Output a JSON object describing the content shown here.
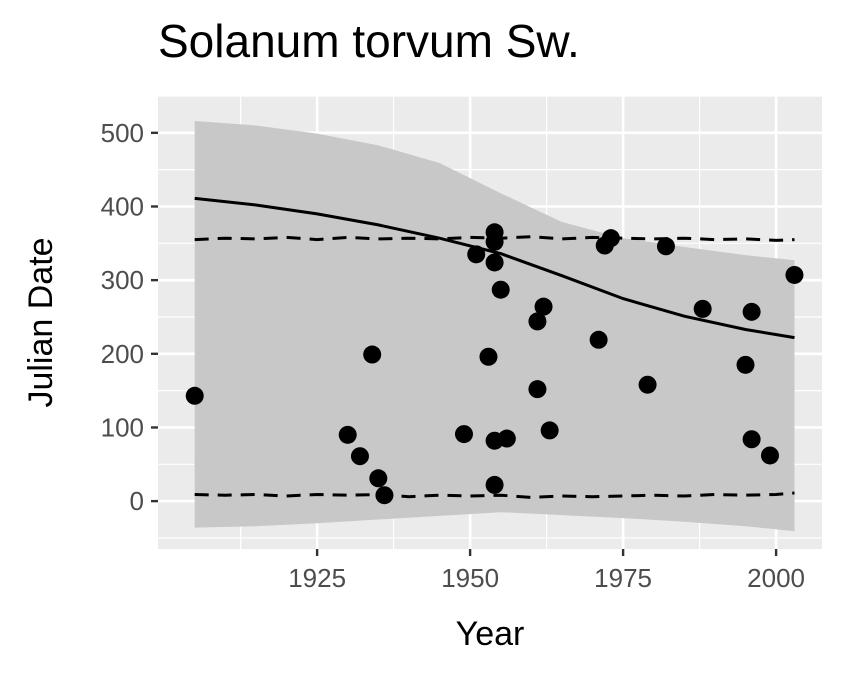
{
  "chart_data": {
    "type": "scatter",
    "title": "Solanum torvum Sw.",
    "xlabel": "Year",
    "ylabel": "Julian Date",
    "xlim": [
      1899,
      2007.5
    ],
    "ylim": [
      -65,
      550
    ],
    "x_ticks": [
      1925,
      1950,
      1975,
      2000
    ],
    "x_tick_labels": [
      "1925",
      "1950",
      "1975",
      "2000"
    ],
    "y_ticks": [
      0,
      100,
      200,
      300,
      400,
      500
    ],
    "y_tick_labels": [
      "0",
      "100",
      "200",
      "300",
      "400",
      "500"
    ],
    "grid": true,
    "legend": "none",
    "colors": {
      "panel": "#ebebeb",
      "grid": "#ffffff",
      "ribbon": "#c8c8c8",
      "points": "#000000",
      "lines": "#000000"
    },
    "points": [
      {
        "x": 1905,
        "y": 143
      },
      {
        "x": 1930,
        "y": 90
      },
      {
        "x": 1932,
        "y": 61
      },
      {
        "x": 1934,
        "y": 199
      },
      {
        "x": 1935,
        "y": 31
      },
      {
        "x": 1936,
        "y": 8
      },
      {
        "x": 1949,
        "y": 91
      },
      {
        "x": 1951,
        "y": 335
      },
      {
        "x": 1953,
        "y": 196
      },
      {
        "x": 1954,
        "y": 365
      },
      {
        "x": 1954,
        "y": 352
      },
      {
        "x": 1954,
        "y": 324
      },
      {
        "x": 1954,
        "y": 82
      },
      {
        "x": 1954,
        "y": 22
      },
      {
        "x": 1955,
        "y": 287
      },
      {
        "x": 1956,
        "y": 85
      },
      {
        "x": 1961,
        "y": 244
      },
      {
        "x": 1961,
        "y": 152
      },
      {
        "x": 1962,
        "y": 264
      },
      {
        "x": 1963,
        "y": 96
      },
      {
        "x": 1971,
        "y": 219
      },
      {
        "x": 1972,
        "y": 347
      },
      {
        "x": 1973,
        "y": 357
      },
      {
        "x": 1979,
        "y": 158
      },
      {
        "x": 1982,
        "y": 346
      },
      {
        "x": 1988,
        "y": 261
      },
      {
        "x": 1995,
        "y": 185
      },
      {
        "x": 1996,
        "y": 257
      },
      {
        "x": 1996,
        "y": 84
      },
      {
        "x": 1999,
        "y": 62
      },
      {
        "x": 2003,
        "y": 307
      }
    ],
    "fit_line": {
      "x": [
        1905,
        1915,
        1925,
        1935,
        1945,
        1955,
        1965,
        1975,
        1985,
        1995,
        2003
      ],
      "y": [
        411,
        402,
        390,
        375,
        357,
        336,
        306,
        275,
        251,
        233,
        222
      ]
    },
    "ribbon": {
      "x": [
        1905,
        1915,
        1925,
        1935,
        1945,
        1955,
        1965,
        1975,
        1985,
        1995,
        2003
      ],
      "upper": [
        516,
        510,
        499,
        483,
        459,
        418,
        379,
        357,
        345,
        334,
        327
      ],
      "lower": [
        -36,
        -34,
        -30,
        -25,
        -20,
        -15,
        -19,
        -23,
        -28,
        -34,
        -41
      ]
    },
    "dashed_upper": {
      "x": [
        1905,
        1910,
        1915,
        1920,
        1925,
        1930,
        1935,
        1940,
        1945,
        1950,
        1955,
        1960,
        1965,
        1970,
        1975,
        1980,
        1985,
        1990,
        1995,
        2000,
        2003
      ],
      "y": [
        355,
        357,
        356,
        358,
        355,
        358,
        356,
        357,
        356,
        358,
        357,
        359,
        356,
        358,
        357,
        356,
        357,
        355,
        356,
        354,
        355
      ]
    },
    "dashed_lower": {
      "x": [
        1905,
        1910,
        1915,
        1920,
        1925,
        1930,
        1935,
        1940,
        1945,
        1950,
        1955,
        1960,
        1965,
        1970,
        1975,
        1980,
        1985,
        1990,
        1995,
        2000,
        2003
      ],
      "y": [
        9,
        8,
        9,
        7,
        9,
        8,
        9,
        6,
        8,
        7,
        8,
        5,
        7,
        6,
        7,
        8,
        7,
        9,
        8,
        9,
        11
      ]
    }
  }
}
